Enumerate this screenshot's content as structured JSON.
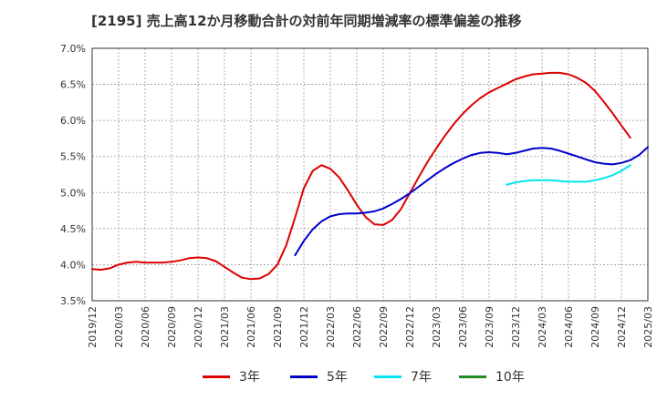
{
  "chart_data": {
    "type": "line",
    "title": "[2195]  売上高12か月移動合計の対前年同期増減率の標準偏差の推移",
    "xlabel": "",
    "ylabel": "",
    "x_ticks": [
      "2019/12",
      "2020/03",
      "2020/06",
      "2020/09",
      "2020/12",
      "2021/03",
      "2021/06",
      "2021/09",
      "2021/12",
      "2022/03",
      "2022/06",
      "2022/09",
      "2022/12",
      "2023/03",
      "2023/06",
      "2023/09",
      "2023/12",
      "2024/03",
      "2024/06",
      "2024/09",
      "2024/12",
      "2025/03"
    ],
    "y_ticks": [
      "3.5%",
      "4.0%",
      "4.5%",
      "5.0%",
      "5.5%",
      "6.0%",
      "6.5%",
      "7.0%"
    ],
    "ylim": [
      3.5,
      7.0
    ],
    "grid": true,
    "legend_position": "bottom",
    "series": [
      {
        "name": "3年",
        "color": "#dd0000",
        "start": "2019/12",
        "values": [
          3.94,
          3.93,
          3.95,
          4.0,
          4.03,
          4.04,
          4.03,
          4.03,
          4.03,
          4.04,
          4.06,
          4.09,
          4.1,
          4.09,
          4.05,
          3.97,
          3.89,
          3.82,
          3.8,
          3.81,
          3.87,
          4.0,
          4.27,
          4.65,
          5.06,
          5.3,
          5.38,
          5.33,
          5.21,
          5.03,
          4.83,
          4.66,
          4.56,
          4.55,
          4.62,
          4.77,
          4.99,
          5.21,
          5.42,
          5.61,
          5.79,
          5.95,
          6.09,
          6.21,
          6.31,
          6.39,
          6.45,
          6.51,
          6.57,
          6.61,
          6.64,
          6.65,
          6.66,
          6.66,
          6.64,
          6.59,
          6.52,
          6.41,
          6.26,
          6.1,
          5.93,
          5.76
        ]
      },
      {
        "name": "5年",
        "color": "#0000cc",
        "start": "2021/11",
        "values": [
          4.13,
          4.33,
          4.49,
          4.6,
          4.67,
          4.7,
          4.71,
          4.71,
          4.72,
          4.74,
          4.78,
          4.84,
          4.91,
          4.99,
          5.08,
          5.17,
          5.26,
          5.34,
          5.41,
          5.47,
          5.52,
          5.55,
          5.56,
          5.55,
          5.53,
          5.55,
          5.58,
          5.61,
          5.62,
          5.61,
          5.58,
          5.54,
          5.5,
          5.46,
          5.42,
          5.4,
          5.39,
          5.41,
          5.45,
          5.52,
          5.63
        ]
      },
      {
        "name": "7年",
        "color": "#00e5ee",
        "start": "2023/11",
        "values": [
          5.11,
          5.14,
          5.16,
          5.17,
          5.17,
          5.17,
          5.16,
          5.15,
          5.15,
          5.15,
          5.17,
          5.2,
          5.24,
          5.3,
          5.38
        ]
      },
      {
        "name": "10年",
        "color": "#228b22",
        "start": "",
        "values": []
      }
    ]
  }
}
